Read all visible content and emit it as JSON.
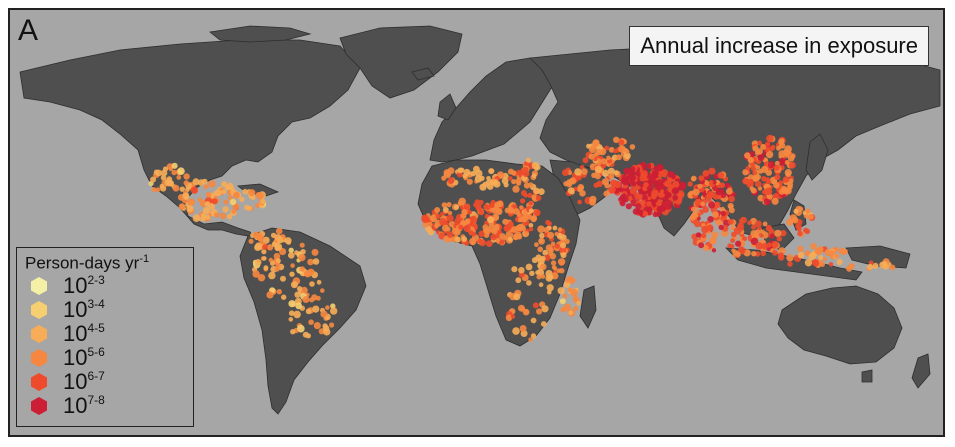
{
  "panel_label": "A",
  "title": "Annual increase in exposure",
  "legend": {
    "title": "Person-days yr",
    "title_superscript": "-1",
    "items": [
      {
        "base": "10",
        "exp": "2-3",
        "color": "#f4f0a6"
      },
      {
        "base": "10",
        "exp": "3-4",
        "color": "#f6d070"
      },
      {
        "base": "10",
        "exp": "4-5",
        "color": "#f7ad58"
      },
      {
        "base": "10",
        "exp": "5-6",
        "color": "#f68740"
      },
      {
        "base": "10",
        "exp": "6-7",
        "color": "#ee4b2c"
      },
      {
        "base": "10",
        "exp": "7-8",
        "color": "#cc1e35"
      }
    ]
  },
  "colors": {
    "ocean": "#a6a6a6",
    "land": "#4f4f4f",
    "border": "#2e2e2e"
  }
}
